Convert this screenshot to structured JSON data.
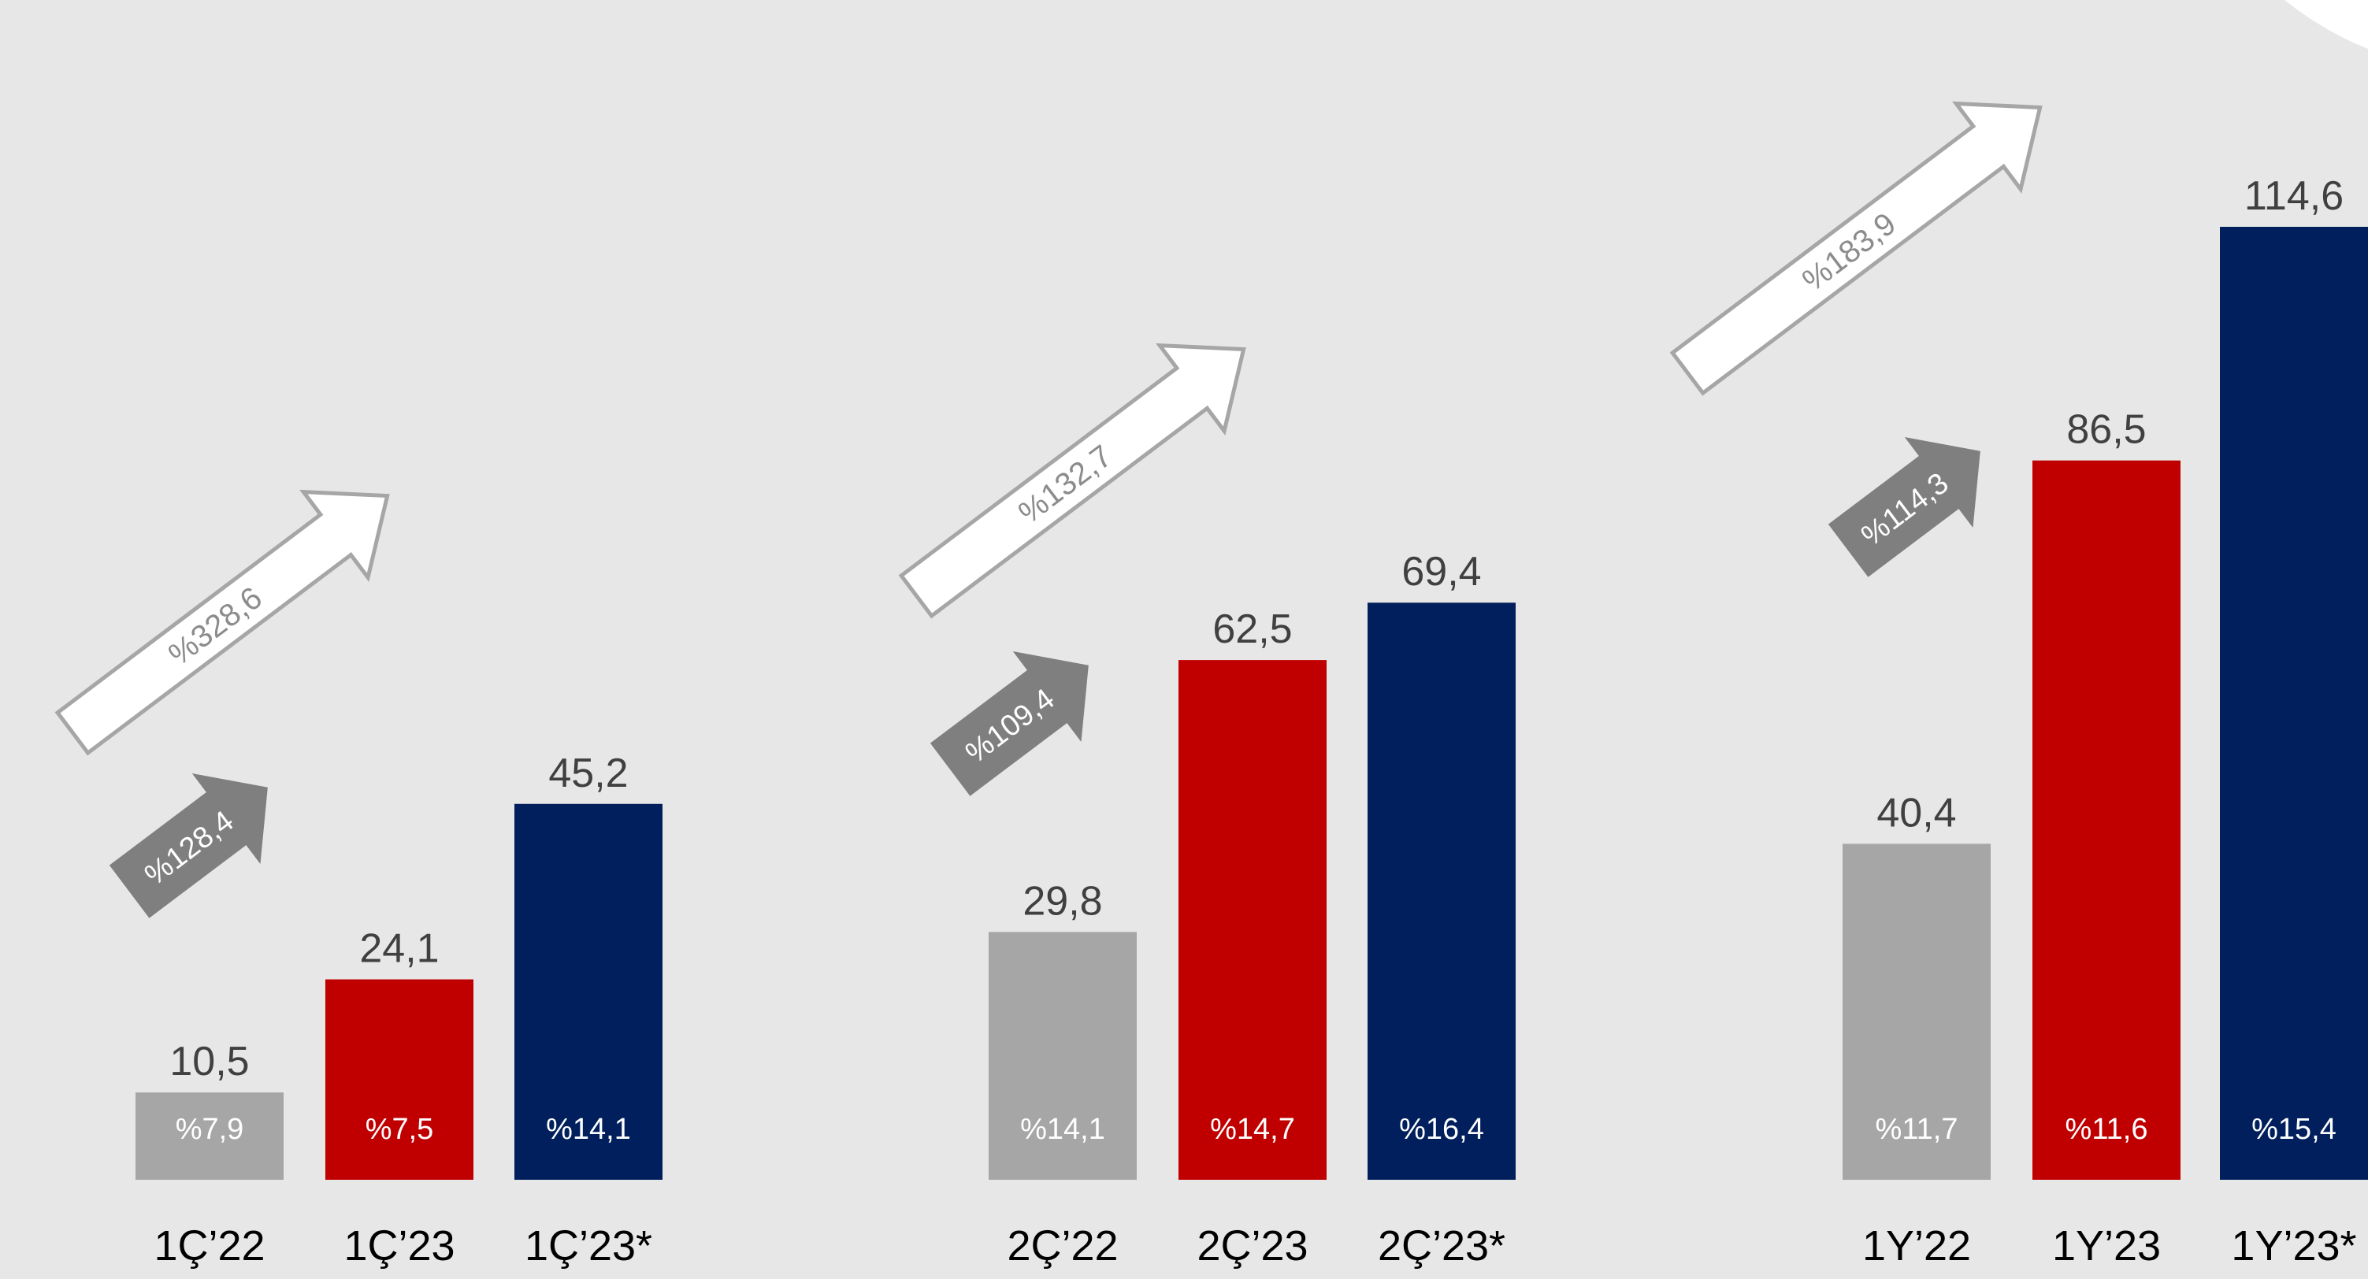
{
  "colors": {
    "background": "#e7e7e7",
    "gray_bar": "#a6a6a6",
    "red_bar": "#c00000",
    "navy_bar": "#001f5c",
    "value_text": "#404040",
    "category_text": "#000000",
    "inner_text": "#ffffff",
    "solid_arrow": "#7f7f7f",
    "outline_arrow_stroke": "#a6a6a6",
    "outline_arrow_fill": "#ffffff",
    "outline_arrow_text": "#8c8c8c"
  },
  "chart_data": {
    "type": "bar",
    "title": "",
    "xlabel": "",
    "ylabel": "",
    "ylim": [
      0,
      114.6
    ],
    "grid": false,
    "legend": "none",
    "groups": [
      {
        "categories": [
          "1Ç’22",
          "1Ç’23",
          "1Ç’23*"
        ],
        "values": [
          10.5,
          24.1,
          45.2
        ],
        "value_labels": [
          "10,5",
          "24,1",
          "45,2"
        ],
        "inner_labels": [
          "%7,9",
          "%7,5",
          "%14,1"
        ],
        "growth_solid": "%128,4",
        "growth_outline": "%328,6"
      },
      {
        "categories": [
          "2Ç’22",
          "2Ç’23",
          "2Ç’23*"
        ],
        "values": [
          29.8,
          62.5,
          69.4
        ],
        "value_labels": [
          "29,8",
          "62,5",
          "69,4"
        ],
        "inner_labels": [
          "%14,1",
          "%14,7",
          "%16,4"
        ],
        "growth_solid": "%109,4",
        "growth_outline": "%132,7"
      },
      {
        "categories": [
          "1Y’22",
          "1Y’23",
          "1Y’23*"
        ],
        "values": [
          40.4,
          86.5,
          114.6
        ],
        "value_labels": [
          "40,4",
          "86,5",
          "114,6"
        ],
        "inner_labels": [
          "%11,7",
          "%11,6",
          "%15,4"
        ],
        "growth_solid": "%114,3",
        "growth_outline": "%183,9"
      }
    ]
  }
}
